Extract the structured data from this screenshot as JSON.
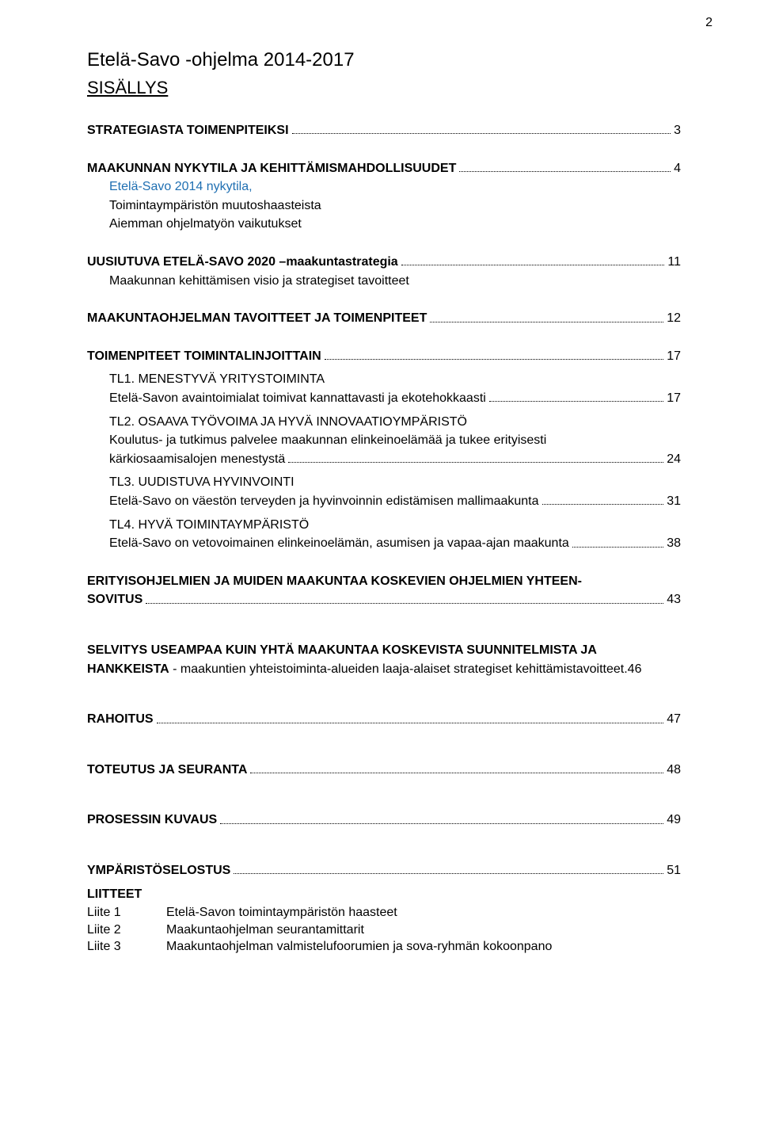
{
  "pageNumber": "2",
  "title": "Etelä-Savo -ohjelma 2014-2017",
  "subtitle": "SISÄLLYS",
  "s1": {
    "label": "STRATEGIASTA TOIMENPITEIKSI",
    "page": "3"
  },
  "s2": {
    "label": "MAAKUNNAN NYKYTILA JA KEHITTÄMISMAHDOLLISUUDET",
    "page": "4"
  },
  "s2a": "Etelä-Savo 2014 nykytila,",
  "s2b": "Toimintaympäristön muutoshaasteista",
  "s2c": "Aiemman ohjelmatyön vaikutukset",
  "s3": {
    "label": "UUSIUTUVA ETELÄ-SAVO 2020 –maakuntastrategia",
    "page": "11"
  },
  "s3a": "Maakunnan kehittämisen visio ja strategiset tavoitteet",
  "s4": {
    "label": "MAAKUNTAOHJELMAN TAVOITTEET JA TOIMENPITEET",
    "page": "12"
  },
  "s5": {
    "label": "TOIMENPITEET TOIMINTALINJOITTAIN",
    "page": "17"
  },
  "tl1": {
    "head": "TL1. MENESTYVÄ YRITYSTOIMINTA",
    "label": "Etelä-Savon avaintoimialat toimivat kannattavasti ja ekotehokkaasti",
    "page": "17"
  },
  "tl2": {
    "head": "TL2. OSAAVA TYÖVOIMA JA HYVÄ INNOVAATIOYMPÄRISTÖ",
    "line1": "Koulutus- ja tutkimus palvelee maakunnan elinkeinoelämää ja tukee erityisesti",
    "label": "kärkiosaamisalojen menestystä",
    "page": "24"
  },
  "tl3": {
    "head": "TL3. UUDISTUVA HYVINVOINTI",
    "label": "Etelä-Savo on väestön terveyden ja hyvinvoinnin edistämisen mallimaakunta",
    "page": "31"
  },
  "tl4": {
    "head": "TL4. HYVÄ TOIMINTAYMPÄRISTÖ",
    "label": "Etelä-Savo on vetovoimainen elinkeinoelämän, asumisen ja vapaa-ajan maakunta",
    "page": "38"
  },
  "s6": {
    "line1": "ERITYISOHJELMIEN JA MUIDEN MAAKUNTAA KOSKEVIEN OHJELMIEN YHTEEN-",
    "label": "SOVITUS",
    "page": "43"
  },
  "s7": {
    "line1": "SELVITYS USEAMPAA KUIN YHTÄ MAAKUNTAA KOSKEVISTA SUUNNITELMISTA JA",
    "line2a": "HANKKEISTA",
    "line2b": " - maakuntien yhteistoiminta-alueiden laaja-alaiset strategiset kehittämistavoitteet.46"
  },
  "s8": {
    "label": "RAHOITUS",
    "page": "47"
  },
  "s9": {
    "label": "TOTEUTUS JA SEURANTA",
    "page": "48"
  },
  "s10": {
    "label": "PROSESSIN KUVAUS",
    "page": "49"
  },
  "s11": {
    "label": "YMPÄRISTÖSELOSTUS",
    "page": "51"
  },
  "liitteet": {
    "head": "LIITTEET",
    "l1": {
      "c1": "Liite 1",
      "c2": "Etelä-Savon toimintaympäristön haasteet"
    },
    "l2": {
      "c1": "Liite 2",
      "c2": "Maakuntaohjelman seurantamittarit"
    },
    "l3": {
      "c1": "Liite 3",
      "c2": "Maakuntaohjelman valmistelufoorumien ja sova-ryhmän kokoonpano"
    }
  }
}
